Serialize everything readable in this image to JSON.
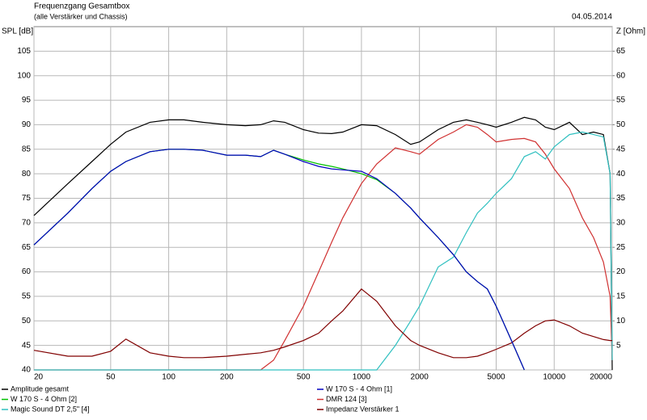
{
  "chart_data": {
    "type": "line",
    "title": "Frequenzgang Gesamtbox",
    "subtitle": "(alle Verstärker und Chassis)",
    "date": "04.05.2014",
    "ylabel": "SPL [dB]",
    "y2label": "Z [Ohm]",
    "xscale": "log",
    "grid": true,
    "xlim": [
      20,
      20000
    ],
    "xticks": [
      20,
      50,
      100,
      200,
      500,
      1000,
      2000,
      5000,
      10000,
      20000
    ],
    "ylim": [
      40,
      110
    ],
    "yticks": [
      40,
      45,
      50,
      55,
      60,
      65,
      70,
      75,
      80,
      85,
      90,
      95,
      100,
      105
    ],
    "y2lim": [
      0,
      70
    ],
    "y2ticks": [
      5,
      10,
      15,
      20,
      25,
      30,
      35,
      40,
      45,
      50,
      55,
      60,
      65
    ],
    "x": [
      20,
      30,
      40,
      50,
      60,
      80,
      100,
      120,
      150,
      200,
      250,
      300,
      350,
      400,
      500,
      600,
      700,
      800,
      1000,
      1200,
      1500,
      1800,
      2000,
      2500,
      3000,
      3500,
      4000,
      4500,
      5000,
      6000,
      7000,
      8000,
      9000,
      10000,
      12000,
      14000,
      16000,
      18000,
      19500,
      20000
    ],
    "series": [
      {
        "name": "Amplitude gesamt",
        "color": "#000000",
        "values": [
          71.5,
          78,
          82.5,
          86,
          88.5,
          90.5,
          91,
          91,
          90.5,
          90,
          89.8,
          90,
          90.8,
          90.5,
          89,
          88.3,
          88.2,
          88.5,
          90,
          89.8,
          88,
          86,
          86.5,
          89,
          90.5,
          91,
          90.5,
          90,
          89.5,
          90.5,
          91.5,
          91,
          89.5,
          89,
          90.5,
          88,
          88.5,
          88,
          80,
          40
        ]
      },
      {
        "name": "W 170 S - 4 Ohm [1]",
        "color": "#0000c0",
        "values": [
          65.5,
          72,
          77,
          80.5,
          82.5,
          84.5,
          85,
          85,
          84.8,
          83.8,
          83.8,
          83.5,
          84.8,
          84,
          82.5,
          81.5,
          81,
          80.8,
          80.5,
          79,
          76,
          73,
          71,
          67,
          63.5,
          60,
          58,
          56.5,
          53,
          46,
          40,
          null,
          null,
          null,
          null,
          null,
          null,
          null,
          null,
          null
        ]
      },
      {
        "name": "W 170 S - 4 Ohm [2]",
        "color": "#00c000",
        "values": [
          65.5,
          72,
          77,
          80.5,
          82.5,
          84.5,
          85,
          85,
          84.8,
          83.8,
          83.8,
          83.5,
          84.8,
          84,
          82.8,
          82,
          81.5,
          81,
          80,
          78.8,
          76,
          73,
          71,
          67,
          63.5,
          60,
          58,
          56.5,
          53,
          46,
          40,
          null,
          null,
          null,
          null,
          null,
          null,
          null,
          null,
          null
        ]
      },
      {
        "name": "DMR 124 [3]",
        "color": "#d03030",
        "values": [
          40,
          40,
          40,
          40,
          40,
          40,
          40,
          40,
          40,
          40,
          40,
          40,
          42,
          46,
          53,
          60,
          66,
          71,
          78,
          82,
          85.3,
          84.5,
          84,
          87,
          88.5,
          90,
          89.5,
          88,
          86.5,
          87,
          87.2,
          86.5,
          84,
          81,
          77,
          71,
          67,
          62,
          55,
          42
        ]
      },
      {
        "name": "Magic Sound DT 2,5\" [4]",
        "color": "#30c0c0",
        "values": [
          40,
          40,
          40,
          40,
          40,
          40,
          40,
          40,
          40,
          40,
          40,
          40,
          40,
          40,
          40,
          40,
          40,
          40,
          40,
          40,
          45,
          50,
          53,
          61,
          63,
          68,
          72,
          74,
          76,
          79,
          83.5,
          84.5,
          83,
          85.5,
          88,
          88.5,
          88,
          87.5,
          80,
          42
        ]
      },
      {
        "name": "Impedanz Verstärker 1",
        "color": "#800000",
        "axis": "y2",
        "values": [
          4,
          2.8,
          2.8,
          3.8,
          6.3,
          3.5,
          2.8,
          2.5,
          2.5,
          2.8,
          3.2,
          3.5,
          4,
          4.7,
          6,
          7.5,
          10,
          12,
          16.5,
          14,
          9,
          6,
          5,
          3.5,
          2.5,
          2.5,
          2.8,
          3.5,
          4.2,
          5.5,
          7.5,
          9,
          10,
          10.2,
          9,
          7.5,
          6.8,
          6.2,
          6,
          6
        ]
      }
    ]
  }
}
